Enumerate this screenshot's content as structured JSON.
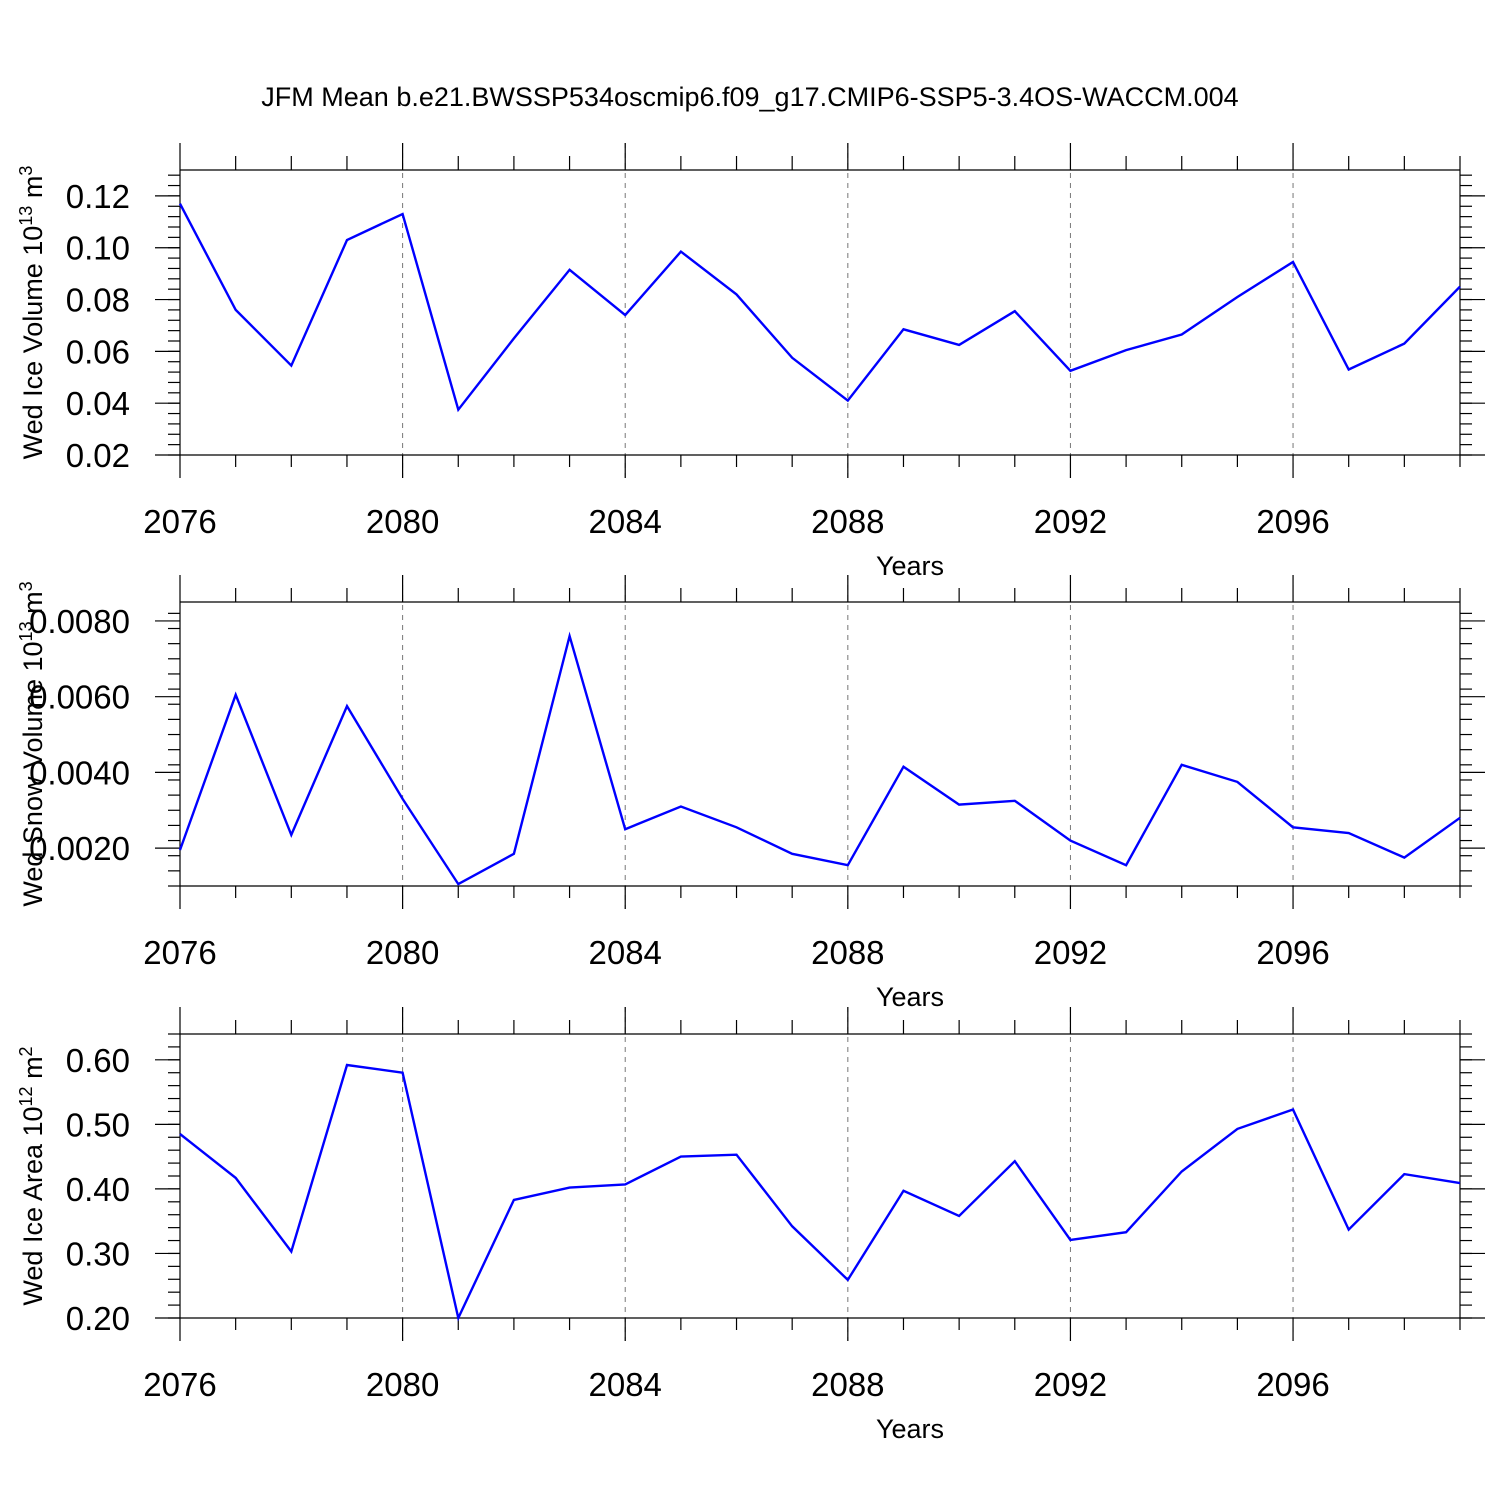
{
  "title": "JFM Mean b.e21.BWSSP534oscmip6.f09_g17.CMIP6-SSP5-3.4OS-WACCM.004",
  "colors": {
    "line": "#0000ff",
    "grid": "#777777",
    "axis": "#000000"
  },
  "chart_data": [
    {
      "type": "line",
      "xlabel": "Years",
      "ylabel_base": "Wed Ice Volume 10",
      "ylabel_exp": "13",
      "ylabel_unit": " m",
      "ylabel_unit_exp": "3",
      "xlim": [
        2076,
        2099
      ],
      "ylim": [
        0.02,
        0.13
      ],
      "xticks": [
        2076,
        2080,
        2084,
        2088,
        2092,
        2096
      ],
      "yticks": [
        0.02,
        0.04,
        0.06,
        0.08,
        0.1,
        0.12
      ],
      "ytick_labels": [
        "0.02",
        "0.04",
        "0.06",
        "0.08",
        "0.10",
        "0.12"
      ],
      "y_minor_step": 0.004,
      "grid_x": [
        2080,
        2084,
        2088,
        2092,
        2096
      ],
      "x": [
        2076,
        2077,
        2078,
        2079,
        2080,
        2081,
        2082,
        2083,
        2084,
        2085,
        2086,
        2087,
        2088,
        2089,
        2090,
        2091,
        2092,
        2093,
        2094,
        2095,
        2096,
        2097,
        2098,
        2099
      ],
      "values": [
        0.117,
        0.076,
        0.0545,
        0.103,
        0.113,
        0.0375,
        0.065,
        0.0915,
        0.074,
        0.0985,
        0.082,
        0.0575,
        0.041,
        0.0685,
        0.0625,
        0.0755,
        0.0525,
        0.0605,
        0.0665,
        0.081,
        0.0945,
        0.053,
        0.063,
        0.085
      ]
    },
    {
      "type": "line",
      "xlabel": "Years",
      "ylabel_base": "Wed Snow Volume 10",
      "ylabel_exp": "13",
      "ylabel_unit": " m",
      "ylabel_unit_exp": "3",
      "xlim": [
        2076,
        2099
      ],
      "ylim": [
        0.001,
        0.0085
      ],
      "xticks": [
        2076,
        2080,
        2084,
        2088,
        2092,
        2096
      ],
      "yticks": [
        0.002,
        0.004,
        0.006,
        0.008
      ],
      "ytick_labels": [
        "0.0020",
        "0.0040",
        "0.0060",
        "0.0080"
      ],
      "y_minor_step": 0.0004,
      "grid_x": [
        2080,
        2084,
        2088,
        2092,
        2096
      ],
      "x": [
        2076,
        2077,
        2078,
        2079,
        2080,
        2081,
        2082,
        2083,
        2084,
        2085,
        2086,
        2087,
        2088,
        2089,
        2090,
        2091,
        2092,
        2093,
        2094,
        2095,
        2096,
        2097,
        2098,
        2099
      ],
      "values": [
        0.00195,
        0.00605,
        0.00235,
        0.00575,
        0.0033,
        0.00105,
        0.00185,
        0.0076,
        0.0025,
        0.0031,
        0.00255,
        0.00185,
        0.00155,
        0.00415,
        0.00315,
        0.00325,
        0.0022,
        0.00155,
        0.0042,
        0.00375,
        0.00255,
        0.0024,
        0.00175,
        0.0028
      ]
    },
    {
      "type": "line",
      "xlabel": "Years",
      "ylabel_base": "Wed Ice Area 10",
      "ylabel_exp": "12",
      "ylabel_unit": " m",
      "ylabel_unit_exp": "2",
      "xlim": [
        2076,
        2099
      ],
      "ylim": [
        0.2,
        0.64
      ],
      "xticks": [
        2076,
        2080,
        2084,
        2088,
        2092,
        2096
      ],
      "yticks": [
        0.2,
        0.3,
        0.4,
        0.5,
        0.6
      ],
      "ytick_labels": [
        "0.20",
        "0.30",
        "0.40",
        "0.50",
        "0.60"
      ],
      "y_minor_step": 0.02,
      "grid_x": [
        2080,
        2084,
        2088,
        2092,
        2096
      ],
      "x": [
        2076,
        2077,
        2078,
        2079,
        2080,
        2081,
        2082,
        2083,
        2084,
        2085,
        2086,
        2087,
        2088,
        2089,
        2090,
        2091,
        2092,
        2093,
        2094,
        2095,
        2096,
        2097,
        2098,
        2099
      ],
      "values": [
        0.485,
        0.417,
        0.303,
        0.592,
        0.58,
        0.2,
        0.383,
        0.402,
        0.407,
        0.45,
        0.453,
        0.342,
        0.259,
        0.397,
        0.358,
        0.443,
        0.321,
        0.333,
        0.427,
        0.493,
        0.523,
        0.337,
        0.423,
        0.409
      ]
    }
  ]
}
